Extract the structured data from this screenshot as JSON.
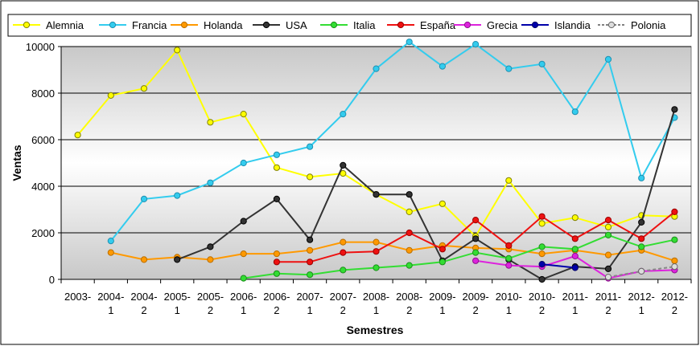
{
  "chart_data": {
    "type": "line",
    "title": "",
    "xlabel": "Semestres",
    "ylabel": "Ventas",
    "ylim": [
      0,
      10000
    ],
    "yticks": [
      0,
      2000,
      4000,
      6000,
      8000,
      10000
    ],
    "grid": true,
    "legend_position": "top",
    "categories": [
      {
        "line1": "2003-",
        "line2": ""
      },
      {
        "line1": "2004-",
        "line2": "1"
      },
      {
        "line1": "2004-",
        "line2": "2"
      },
      {
        "line1": "2005-",
        "line2": "1"
      },
      {
        "line1": "2005-",
        "line2": "2"
      },
      {
        "line1": "2006-",
        "line2": "1"
      },
      {
        "line1": "2006-",
        "line2": "2"
      },
      {
        "line1": "2007-",
        "line2": "1"
      },
      {
        "line1": "2007-",
        "line2": "2"
      },
      {
        "line1": "2008-",
        "line2": "1"
      },
      {
        "line1": "2008-",
        "line2": "2"
      },
      {
        "line1": "2009-",
        "line2": "1"
      },
      {
        "line1": "2009-",
        "line2": "2"
      },
      {
        "line1": "2010-",
        "line2": "1"
      },
      {
        "line1": "2010-",
        "line2": "2"
      },
      {
        "line1": "2011-",
        "line2": "1"
      },
      {
        "line1": "2011-",
        "line2": "2"
      },
      {
        "line1": "2012-",
        "line2": "1"
      },
      {
        "line1": "2012-",
        "line2": "2"
      }
    ],
    "series": [
      {
        "name": "Alemnia",
        "color": "#ffff00",
        "marker_stroke": "#808000",
        "dashed": false,
        "values": [
          6200,
          7900,
          8200,
          9850,
          6750,
          7100,
          4800,
          4400,
          4550,
          3650,
          2900,
          3250,
          1850,
          4250,
          2400,
          2650,
          2250,
          2750,
          2700
        ]
      },
      {
        "name": "Francia",
        "color": "#33ccee",
        "marker_stroke": "#1f8fb0",
        "dashed": false,
        "values": [
          null,
          1650,
          3450,
          3600,
          4150,
          5000,
          5350,
          5700,
          7100,
          9050,
          10200,
          9150,
          10100,
          9050,
          9250,
          7200,
          9450,
          4350,
          6950
        ]
      },
      {
        "name": "Holanda",
        "color": "#ff9900",
        "marker_stroke": "#b86e00",
        "dashed": false,
        "values": [
          null,
          1150,
          850,
          950,
          850,
          1100,
          1100,
          1250,
          1600,
          1600,
          1250,
          1450,
          1350,
          1300,
          1100,
          1250,
          1050,
          1250,
          800
        ]
      },
      {
        "name": "USA",
        "color": "#333333",
        "marker_stroke": "#000000",
        "dashed": false,
        "values": [
          null,
          null,
          null,
          850,
          1400,
          2500,
          3450,
          1700,
          4900,
          3650,
          3650,
          800,
          1750,
          850,
          0,
          550,
          450,
          2450,
          7300
        ]
      },
      {
        "name": "Italia",
        "color": "#33dd33",
        "marker_stroke": "#1a8f1a",
        "dashed": false,
        "values": [
          null,
          null,
          null,
          null,
          null,
          50,
          250,
          200,
          400,
          500,
          600,
          750,
          1150,
          900,
          1400,
          1300,
          1900,
          1400,
          1700
        ]
      },
      {
        "name": "España",
        "color": "#ee1111",
        "marker_stroke": "#990000",
        "dashed": false,
        "values": [
          null,
          null,
          null,
          null,
          null,
          null,
          750,
          750,
          1150,
          1200,
          2000,
          1300,
          2550,
          1450,
          2700,
          1750,
          2550,
          1750,
          2900
        ]
      },
      {
        "name": "Grecia",
        "color": "#dd22dd",
        "marker_stroke": "#8f118f",
        "dashed": false,
        "values": [
          null,
          null,
          null,
          null,
          null,
          null,
          null,
          null,
          null,
          null,
          null,
          null,
          800,
          600,
          550,
          1000,
          50,
          350,
          400
        ]
      },
      {
        "name": "Islandia",
        "color": "#0000aa",
        "marker_stroke": "#000066",
        "dashed": false,
        "values": [
          null,
          null,
          null,
          null,
          null,
          null,
          null,
          null,
          null,
          null,
          null,
          null,
          null,
          null,
          650,
          500,
          null,
          null,
          null
        ]
      },
      {
        "name": "Polonia",
        "color": "#888888",
        "marker_stroke": "#666666",
        "dashed": true,
        "values": [
          null,
          null,
          null,
          null,
          null,
          null,
          null,
          null,
          null,
          null,
          null,
          null,
          null,
          null,
          null,
          null,
          100,
          350,
          550
        ]
      }
    ]
  }
}
